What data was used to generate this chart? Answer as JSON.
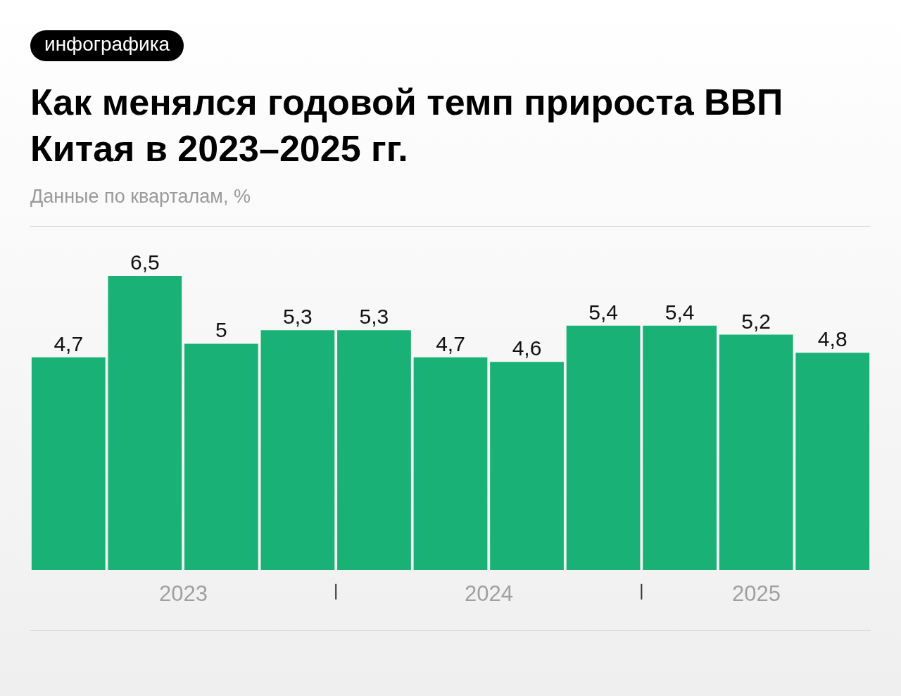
{
  "chart_data": {
    "type": "bar",
    "title": "Как менялся годовой темп прироста ВВП Китая в 2023–2025 гг.",
    "subtitle": "Данные по кварталам, %",
    "categories": [
      null,
      null,
      null,
      null,
      null,
      null,
      null,
      null,
      null,
      null,
      null
    ],
    "values": [
      4.7,
      6.5,
      5,
      5.3,
      5.3,
      4.7,
      4.6,
      5.4,
      5.4,
      5.2,
      4.8
    ],
    "value_labels": [
      "4,7",
      "6,5",
      "5",
      "5,3",
      "5,3",
      "4,7",
      "4,6",
      "5,4",
      "5,4",
      "5,2",
      "4,8"
    ],
    "color": "#1ab176",
    "annotations": [
      "инфографика",
      "2023",
      "2024",
      "2025"
    ]
  }
}
